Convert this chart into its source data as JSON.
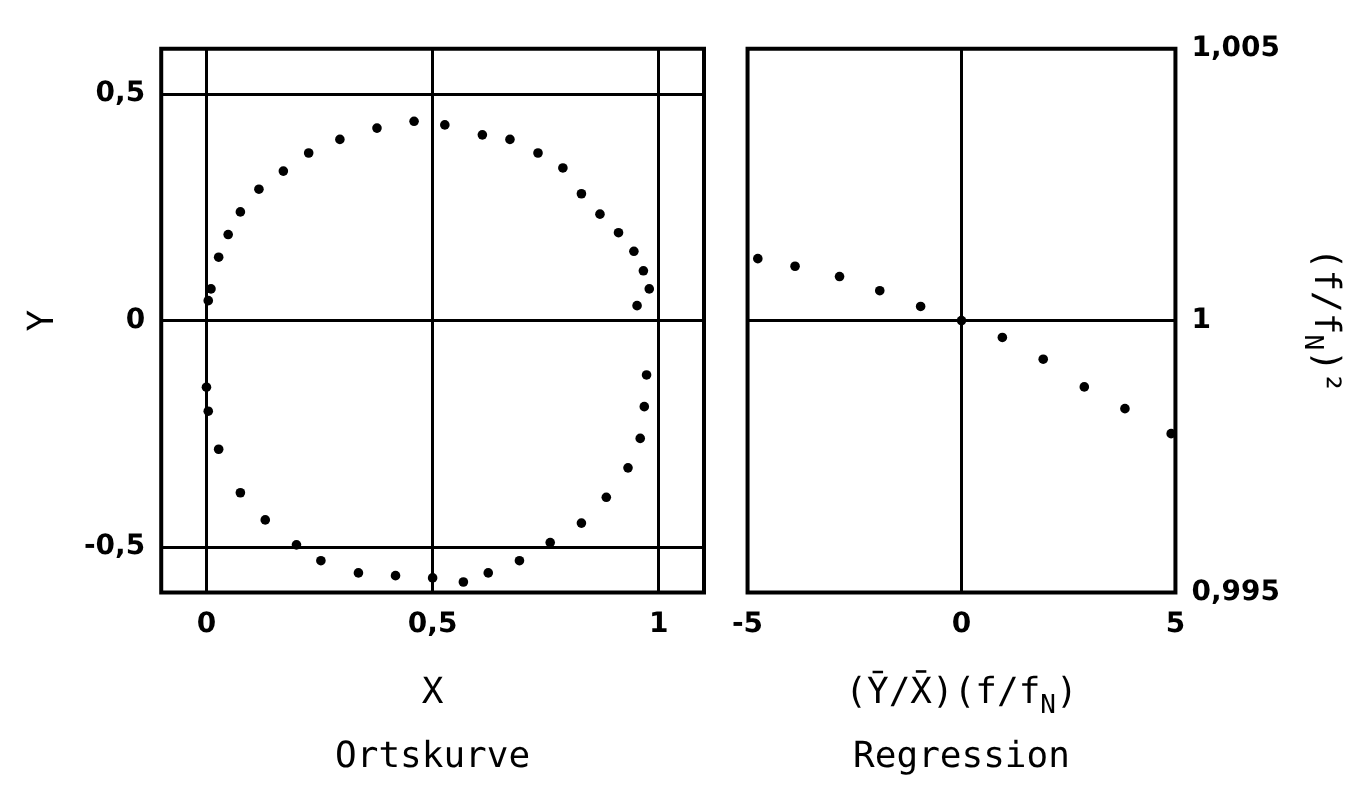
{
  "chart_data": [
    {
      "type": "scatter",
      "title": "Ortskurve",
      "xlabel": "X",
      "ylabel": "Y",
      "xlim": [
        -0.1,
        1.1
      ],
      "ylim": [
        -0.6,
        0.6
      ],
      "xticks": [
        0,
        {
          "value": 0.5,
          "label": "0,5"
        },
        1
      ],
      "yticks": [
        {
          "value": -0.5,
          "label": "-0,5"
        },
        0,
        {
          "value": 0.5,
          "label": "0,5"
        }
      ],
      "grid": true,
      "legend": false,
      "marker": "circle",
      "series": [
        {
          "color": "#000000",
          "x": [
            0.004,
            0.01,
            0.027,
            0.048,
            0.075,
            0.116,
            0.17,
            0.226,
            0.295,
            0.377,
            0.459,
            0.527,
            0.61,
            0.671,
            0.733,
            0.788,
            0.829,
            0.87,
            0.911,
            0.945,
            0.966,
            0.979,
            0.952,
            0.973,
            0.968,
            0.959,
            0.932,
            0.884,
            0.829,
            0.76,
            0.692,
            0.623,
            0.568,
            0.5,
            0.418,
            0.336,
            0.253,
            0.199,
            0.13,
            0.075,
            0.027,
            0.004,
            0
          ],
          "values": [
            0.044,
            0.07,
            0.14,
            0.19,
            0.24,
            0.29,
            0.33,
            0.37,
            0.4,
            0.425,
            0.44,
            0.432,
            0.41,
            0.4,
            0.37,
            0.337,
            0.28,
            0.235,
            0.194,
            0.153,
            0.11,
            0.07,
            0.033,
            -0.12,
            -0.19,
            -0.26,
            -0.325,
            -0.39,
            -0.447,
            -0.49,
            -0.53,
            -0.557,
            -0.577,
            -0.568,
            -0.563,
            -0.557,
            -0.53,
            -0.495,
            -0.44,
            -0.38,
            -0.284,
            -0.2,
            -0.147
          ]
        }
      ]
    },
    {
      "type": "scatter",
      "title": "Regression",
      "xlabel": "(Ȳ/X̄)(f/f$_{N}$)",
      "ylabel": "(f/f$_{N}$)²",
      "xlim": [
        -5,
        5
      ],
      "ylim": [
        0.995,
        1.005
      ],
      "xticks": [
        -5,
        0,
        5
      ],
      "yticks": [
        {
          "value": 0.995,
          "label": "0,995"
        },
        1,
        {
          "value": 1.005,
          "label": "1,005"
        }
      ],
      "grid": true,
      "legend": false,
      "marker": "circle",
      "series": [
        {
          "color": "#000000",
          "x": [
            -4.76,
            -3.89,
            -2.85,
            -1.91,
            -0.955,
            0,
            0.955,
            1.91,
            2.87,
            3.82,
            4.9
          ],
          "values": [
            1.00114,
            1.001,
            1.00081,
            1.00055,
            1.00026,
            1.0,
            0.99969,
            0.99929,
            0.99878,
            0.99838,
            0.99792
          ]
        }
      ]
    }
  ]
}
